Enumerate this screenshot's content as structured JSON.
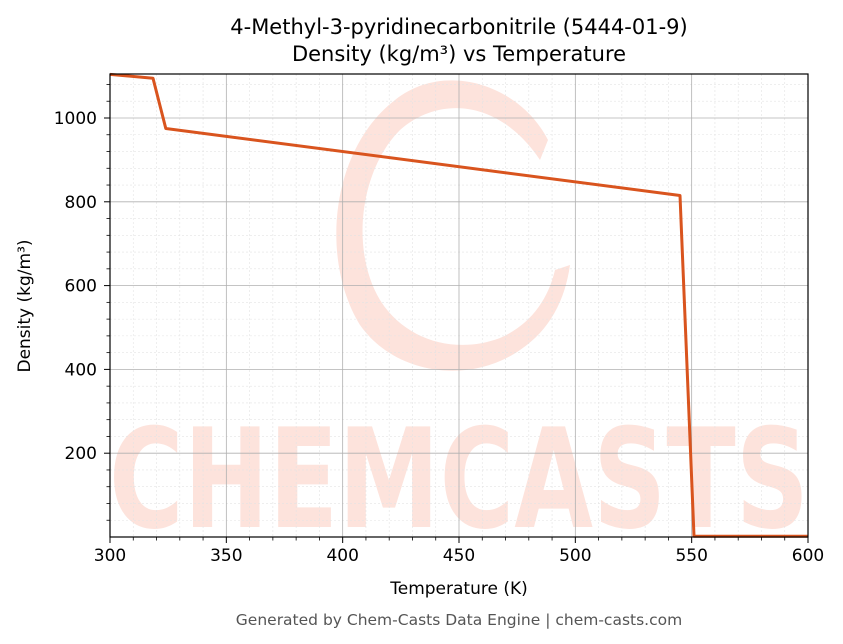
{
  "chart_data": {
    "type": "line",
    "title": "4-Methyl-3-pyridinecarbonitrile (5444-01-9)",
    "subtitle": "Density (kg/m³) vs Temperature",
    "xlabel": "Temperature (K)",
    "ylabel": "Density (kg/m³)",
    "xlim": [
      300,
      600
    ],
    "ylim": [
      0,
      1105
    ],
    "xticks": [
      300,
      350,
      400,
      450,
      500,
      550,
      600
    ],
    "yticks": [
      200,
      400,
      600,
      800,
      1000
    ],
    "grid": true,
    "series": [
      {
        "color": "#d9541e",
        "x": [
          300,
          318.5,
          324,
          545,
          551,
          600
        ],
        "y": [
          1104,
          1095,
          975,
          815,
          2,
          2
        ]
      }
    ]
  },
  "watermark": {
    "text": "CHEMCASTS",
    "color": "#fde3dc"
  },
  "footer": "Generated by Chem-Casts Data Engine | chem-casts.com"
}
